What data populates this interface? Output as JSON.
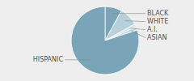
{
  "chart_data": {
    "type": "pie",
    "categories": [
      "BLACK",
      "WHITE",
      "A.I.",
      "ASIAN",
      "HISPANIC"
    ],
    "values": [
      8,
      9,
      1.5,
      1.5,
      80
    ],
    "colors": [
      "#7aa4b8",
      "#b8d0db",
      "#d0e3eb",
      "#c0d5e0",
      "#7aa4b8"
    ]
  }
}
